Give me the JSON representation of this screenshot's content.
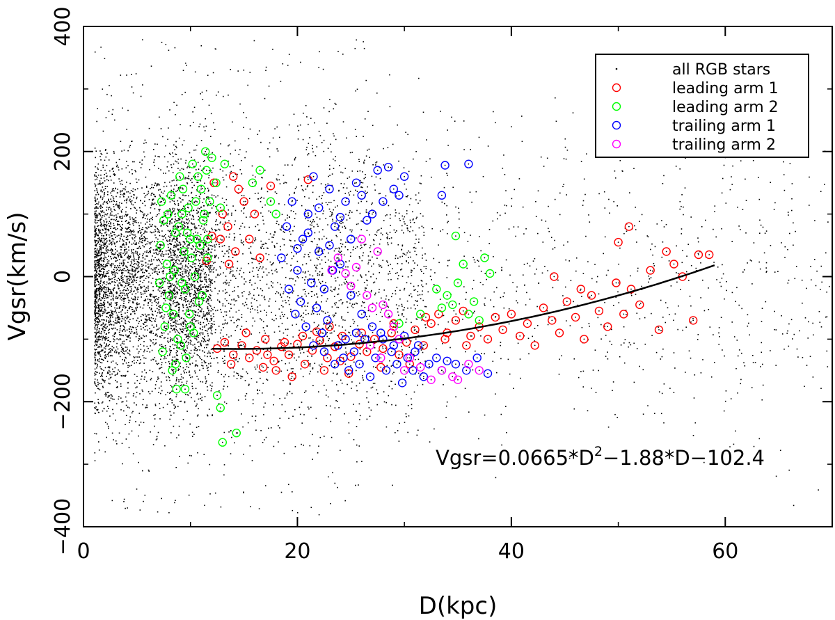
{
  "chart_data": {
    "type": "scatter",
    "title": "",
    "xlabel": "D(kpc)",
    "ylabel": "Vgsr(km/s)",
    "xlim": [
      0,
      70
    ],
    "ylim": [
      -400,
      400
    ],
    "x_ticks": [
      0,
      20,
      40,
      60
    ],
    "y_ticks": [
      -400,
      -200,
      0,
      200,
      400
    ],
    "x_tick_labels": [
      "0",
      "20",
      "40",
      "60"
    ],
    "y_tick_labels": [
      "−400",
      "−200",
      "0",
      "200",
      "400"
    ],
    "grid": false,
    "legend_position": "top-right",
    "legend": [
      {
        "label": "all RGB stars",
        "marker": "dot",
        "color": "#000000"
      },
      {
        "label": "leading arm 1",
        "marker": "circle",
        "color": "#ff0000"
      },
      {
        "label": "leading arm 2",
        "marker": "circle",
        "color": "#00ff00"
      },
      {
        "label": "trailing arm 1",
        "marker": "circle",
        "color": "#0000ff"
      },
      {
        "label": "trailing arm 2",
        "marker": "circle",
        "color": "#ff00ff"
      }
    ],
    "fit": {
      "label_prefix": "Vgsr=0.0665*D",
      "label_exponent": "2",
      "label_suffix": "−1.88*D−102.4",
      "a": 0.0665,
      "b": -1.88,
      "c": -102.4,
      "x_range": [
        12,
        59
      ],
      "color": "#000000"
    },
    "series": [
      {
        "name": "leading arm 1",
        "color": "#ff0000",
        "points": [
          [
            12.5,
            -115
          ],
          [
            13.2,
            -105
          ],
          [
            14.0,
            -125
          ],
          [
            14.8,
            -110
          ],
          [
            15.5,
            -130
          ],
          [
            16.2,
            -118
          ],
          [
            17.0,
            -100
          ],
          [
            17.8,
            -135
          ],
          [
            18.5,
            -112
          ],
          [
            19.2,
            -125
          ],
          [
            20.0,
            -108
          ],
          [
            20.7,
            -140
          ],
          [
            21.4,
            -118
          ],
          [
            22.1,
            -102
          ],
          [
            22.8,
            -130
          ],
          [
            23.5,
            -112
          ],
          [
            24.2,
            -95
          ],
          [
            25.0,
            -128
          ],
          [
            25.8,
            -108
          ],
          [
            26.5,
            -120
          ],
          [
            27.2,
            -100
          ],
          [
            28.0,
            -115
          ],
          [
            28.8,
            -90
          ],
          [
            29.5,
            -125
          ],
          [
            30.2,
            -105
          ],
          [
            31.0,
            -85
          ],
          [
            31.8,
            -110
          ],
          [
            32.5,
            -75
          ],
          [
            33.2,
            -60
          ],
          [
            34.0,
            -90
          ],
          [
            34.8,
            -70
          ],
          [
            35.5,
            -55
          ],
          [
            36.2,
            -95
          ],
          [
            37.0,
            -80
          ],
          [
            37.8,
            -100
          ],
          [
            38.5,
            -65
          ],
          [
            39.2,
            -85
          ],
          [
            40.0,
            -60
          ],
          [
            40.8,
            -95
          ],
          [
            41.5,
            -75
          ],
          [
            42.2,
            -110
          ],
          [
            43.0,
            -50
          ],
          [
            43.8,
            -70
          ],
          [
            44.5,
            -90
          ],
          [
            45.2,
            -40
          ],
          [
            46.0,
            -65
          ],
          [
            46.8,
            -100
          ],
          [
            47.5,
            -30
          ],
          [
            48.2,
            -55
          ],
          [
            49.0,
            -80
          ],
          [
            49.8,
            -10
          ],
          [
            50.5,
            -60
          ],
          [
            51.2,
            -20
          ],
          [
            52.0,
            -45
          ],
          [
            53.0,
            10
          ],
          [
            53.8,
            -85
          ],
          [
            54.5,
            40
          ],
          [
            55.2,
            20
          ],
          [
            56.0,
            0
          ],
          [
            57.0,
            -70
          ],
          [
            57.5,
            35
          ],
          [
            58.5,
            35
          ],
          [
            51.0,
            80
          ],
          [
            50.0,
            55
          ],
          [
            44.0,
            0
          ],
          [
            46.5,
            -20
          ],
          [
            14.0,
            160
          ],
          [
            14.5,
            140
          ],
          [
            15.0,
            120
          ],
          [
            16.0,
            100
          ],
          [
            13.5,
            80
          ],
          [
            15.5,
            60
          ],
          [
            14.2,
            40
          ],
          [
            13.0,
            100
          ],
          [
            12.8,
            60
          ],
          [
            16.5,
            30
          ],
          [
            17.5,
            145
          ],
          [
            21.0,
            155
          ],
          [
            11.5,
            25
          ],
          [
            12.0,
            65
          ],
          [
            13.8,
            -140
          ],
          [
            18.0,
            -150
          ],
          [
            19.5,
            -160
          ],
          [
            16.8,
            -145
          ],
          [
            22.5,
            -150
          ],
          [
            24.8,
            -155
          ],
          [
            27.8,
            -145
          ],
          [
            30.5,
            -140
          ],
          [
            33.8,
            -100
          ],
          [
            35.8,
            -110
          ],
          [
            20.5,
            -95
          ],
          [
            21.8,
            -88
          ],
          [
            23.0,
            -80
          ],
          [
            26.0,
            -90
          ],
          [
            29.0,
            -75
          ],
          [
            32.0,
            -65
          ],
          [
            12.2,
            150
          ],
          [
            13.6,
            20
          ],
          [
            15.2,
            -90
          ],
          [
            17.2,
            -125
          ],
          [
            18.8,
            -105
          ],
          [
            24.0,
            -135
          ]
        ]
      },
      {
        "name": "leading arm 2",
        "color": "#00ff00",
        "points": [
          [
            7.2,
            50
          ],
          [
            7.5,
            90
          ],
          [
            7.8,
            20
          ],
          [
            8.0,
            -30
          ],
          [
            8.2,
            130
          ],
          [
            8.4,
            -60
          ],
          [
            8.6,
            70
          ],
          [
            8.8,
            -100
          ],
          [
            9.0,
            160
          ],
          [
            9.2,
            -10
          ],
          [
            9.4,
            40
          ],
          [
            9.6,
            -130
          ],
          [
            9.8,
            110
          ],
          [
            10.0,
            -80
          ],
          [
            10.2,
            180
          ],
          [
            10.4,
            0
          ],
          [
            10.6,
            60
          ],
          [
            10.8,
            -40
          ],
          [
            11.0,
            140
          ],
          [
            11.2,
            90
          ],
          [
            11.4,
            200
          ],
          [
            11.6,
            30
          ],
          [
            11.8,
            120
          ],
          [
            12.0,
            190
          ],
          [
            12.4,
            150
          ],
          [
            12.8,
            110
          ],
          [
            13.2,
            180
          ],
          [
            7.4,
            -120
          ],
          [
            7.6,
            -80
          ],
          [
            7.9,
            100
          ],
          [
            8.1,
            0
          ],
          [
            8.3,
            -150
          ],
          [
            8.5,
            10
          ],
          [
            8.7,
            -180
          ],
          [
            8.9,
            80
          ],
          [
            9.1,
            -110
          ],
          [
            9.3,
            140
          ],
          [
            9.5,
            -20
          ],
          [
            9.7,
            70
          ],
          [
            9.9,
            -60
          ],
          [
            10.1,
            30
          ],
          [
            10.3,
            -90
          ],
          [
            10.5,
            120
          ],
          [
            10.7,
            160
          ],
          [
            10.9,
            50
          ],
          [
            11.1,
            -30
          ],
          [
            11.3,
            100
          ],
          [
            11.5,
            170
          ],
          [
            7.1,
            -10
          ],
          [
            7.3,
            120
          ],
          [
            7.7,
            -50
          ],
          [
            8.6,
            -140
          ],
          [
            9.2,
            100
          ],
          [
            10.0,
            60
          ],
          [
            9.5,
            -180
          ],
          [
            12.5,
            -190
          ],
          [
            12.8,
            -210
          ],
          [
            13.0,
            -265
          ],
          [
            14.3,
            -250
          ],
          [
            11.6,
            60
          ],
          [
            33.0,
            -20
          ],
          [
            34.0,
            -30
          ],
          [
            34.8,
            65
          ],
          [
            35.5,
            20
          ],
          [
            36.5,
            -40
          ],
          [
            37.5,
            30
          ],
          [
            38.0,
            5
          ],
          [
            36.0,
            -60
          ],
          [
            33.5,
            -50
          ],
          [
            35.0,
            -10
          ],
          [
            37.0,
            -70
          ],
          [
            34.5,
            -45
          ],
          [
            16.5,
            170
          ],
          [
            17.5,
            120
          ],
          [
            18.0,
            100
          ],
          [
            15.8,
            150
          ],
          [
            29.5,
            -75
          ],
          [
            31.5,
            -60
          ]
        ]
      },
      {
        "name": "trailing arm 1",
        "color": "#0000ff",
        "points": [
          [
            18.5,
            30
          ],
          [
            19.0,
            80
          ],
          [
            19.5,
            120
          ],
          [
            20.0,
            10
          ],
          [
            20.5,
            60
          ],
          [
            21.0,
            100
          ],
          [
            21.5,
            160
          ],
          [
            22.0,
            40
          ],
          [
            22.5,
            -20
          ],
          [
            23.0,
            140
          ],
          [
            23.5,
            80
          ],
          [
            24.0,
            20
          ],
          [
            24.5,
            120
          ],
          [
            25.0,
            60
          ],
          [
            25.5,
            150
          ],
          [
            26.0,
            130
          ],
          [
            26.5,
            90
          ],
          [
            27.0,
            100
          ],
          [
            27.5,
            170
          ],
          [
            28.0,
            120
          ],
          [
            28.5,
            175
          ],
          [
            29.0,
            140
          ],
          [
            29.5,
            130
          ],
          [
            30.0,
            160
          ],
          [
            33.5,
            130
          ],
          [
            33.8,
            178
          ],
          [
            36.0,
            180
          ],
          [
            19.2,
            -20
          ],
          [
            19.8,
            -60
          ],
          [
            20.3,
            -40
          ],
          [
            20.8,
            -80
          ],
          [
            21.3,
            -10
          ],
          [
            21.8,
            -50
          ],
          [
            22.3,
            -90
          ],
          [
            22.8,
            -70
          ],
          [
            23.3,
            10
          ],
          [
            23.8,
            -110
          ],
          [
            24.3,
            -130
          ],
          [
            24.8,
            -150
          ],
          [
            25.3,
            -120
          ],
          [
            25.8,
            -140
          ],
          [
            26.3,
            -100
          ],
          [
            26.8,
            -160
          ],
          [
            27.3,
            -130
          ],
          [
            27.8,
            -90
          ],
          [
            28.3,
            -150
          ],
          [
            28.8,
            -120
          ],
          [
            29.3,
            -140
          ],
          [
            29.8,
            -170
          ],
          [
            30.3,
            -130
          ],
          [
            30.8,
            -150
          ],
          [
            31.3,
            -110
          ],
          [
            31.8,
            -160
          ],
          [
            32.3,
            -140
          ],
          [
            33.0,
            -130
          ],
          [
            33.5,
            -150
          ],
          [
            34.0,
            -135
          ],
          [
            34.8,
            -140
          ],
          [
            35.8,
            -150
          ],
          [
            36.8,
            -130
          ],
          [
            37.8,
            -155
          ],
          [
            20.0,
            45
          ],
          [
            21.0,
            70
          ],
          [
            22.0,
            110
          ],
          [
            23.0,
            50
          ],
          [
            24.0,
            95
          ],
          [
            25.0,
            -30
          ],
          [
            26.0,
            -60
          ],
          [
            27.0,
            -80
          ],
          [
            21.5,
            -110
          ],
          [
            22.5,
            -120
          ],
          [
            23.5,
            -140
          ],
          [
            24.5,
            -100
          ],
          [
            25.5,
            -90
          ],
          [
            28.0,
            -100
          ],
          [
            29.0,
            -110
          ],
          [
            30.0,
            -95
          ],
          [
            31.0,
            -120
          ]
        ]
      },
      {
        "name": "trailing arm 2",
        "color": "#ff00ff",
        "points": [
          [
            23.2,
            10
          ],
          [
            23.8,
            30
          ],
          [
            24.5,
            5
          ],
          [
            25.0,
            -15
          ],
          [
            25.5,
            15
          ],
          [
            26.0,
            60
          ],
          [
            26.5,
            -30
          ],
          [
            27.0,
            -50
          ],
          [
            27.5,
            40
          ],
          [
            28.0,
            -45
          ],
          [
            28.5,
            -60
          ],
          [
            29.0,
            -80
          ],
          [
            29.5,
            -100
          ],
          [
            30.0,
            -150
          ],
          [
            30.5,
            -130
          ],
          [
            31.5,
            -145
          ],
          [
            32.5,
            -165
          ],
          [
            33.5,
            -150
          ],
          [
            34.5,
            -160
          ],
          [
            35.0,
            -165
          ],
          [
            36.0,
            -140
          ],
          [
            37.0,
            -150
          ],
          [
            26.8,
            -110
          ],
          [
            27.8,
            -130
          ]
        ]
      }
    ]
  }
}
